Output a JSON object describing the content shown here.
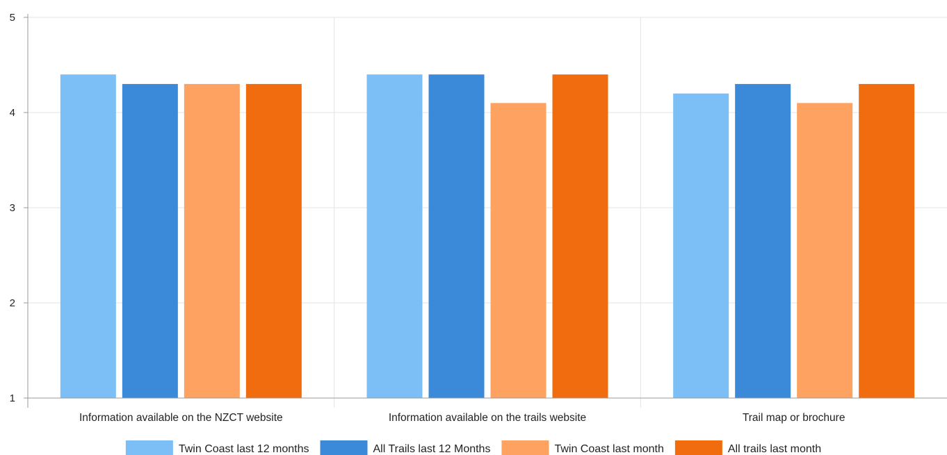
{
  "chart_data": {
    "type": "bar",
    "categories": [
      "Information available on the NZCT website",
      "Information available on the trails website",
      "Trail map or brochure"
    ],
    "series": [
      {
        "name": "Twin Coast last 12 months",
        "color": "#7cbff6",
        "values": [
          4.4,
          4.4,
          4.2
        ]
      },
      {
        "name": "All Trails last 12 Months",
        "color": "#3b89d9",
        "values": [
          4.3,
          4.4,
          4.3
        ]
      },
      {
        "name": "Twin Coast last month",
        "color": "#fda261",
        "values": [
          4.3,
          4.1,
          4.1
        ]
      },
      {
        "name": "All trails last month",
        "color": "#f06c0e",
        "values": [
          4.3,
          4.4,
          4.3
        ]
      }
    ],
    "yticks": [
      "1",
      "2",
      "3",
      "4",
      "5"
    ],
    "ylim": [
      1,
      5
    ],
    "grid": true,
    "legend_position": "bottom"
  }
}
